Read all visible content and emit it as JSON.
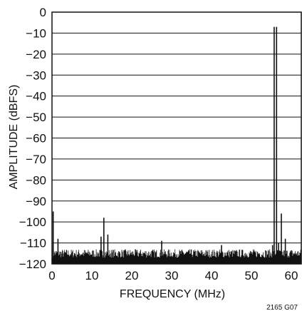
{
  "chart_data": {
    "type": "line",
    "title": "",
    "xlabel": "FREQUENCY (MHz)",
    "ylabel": "AMPLITUDE (dBFS)",
    "xlim": [
      0,
      62.5
    ],
    "ylim": [
      -120,
      0
    ],
    "x_ticks": [
      0,
      10,
      20,
      30,
      40,
      50,
      60
    ],
    "x_tick_labels": [
      "0",
      "10",
      "20",
      "30",
      "40",
      "50",
      "60"
    ],
    "y_ticks": [
      0,
      -10,
      -20,
      -30,
      -40,
      -50,
      -60,
      -70,
      -80,
      -90,
      -100,
      -110,
      -120
    ],
    "y_tick_labels": [
      "0",
      "−10",
      "−20",
      "−30",
      "−40",
      "−50",
      "−60",
      "−70",
      "−80",
      "−90",
      "−100",
      "−110",
      "−120"
    ],
    "grid": "horizontal",
    "noise_floor": [
      -117,
      -113
    ],
    "spurs": [
      {
        "x": 0.3,
        "y": -95
      },
      {
        "x": 1.5,
        "y": -108
      },
      {
        "x": 12.3,
        "y": -107
      },
      {
        "x": 13.0,
        "y": -98
      },
      {
        "x": 14.0,
        "y": -106
      },
      {
        "x": 27.5,
        "y": -109
      },
      {
        "x": 42.5,
        "y": -111
      },
      {
        "x": 55.3,
        "y": -111
      },
      {
        "x": 55.7,
        "y": -7
      },
      {
        "x": 56.3,
        "y": -7
      },
      {
        "x": 56.8,
        "y": -110
      },
      {
        "x": 57.5,
        "y": -96
      },
      {
        "x": 58.5,
        "y": -108
      }
    ]
  },
  "figure_id": "2165 G07",
  "colors": {
    "trace": "#111111",
    "grid": "#111111",
    "background": "#ffffff"
  }
}
